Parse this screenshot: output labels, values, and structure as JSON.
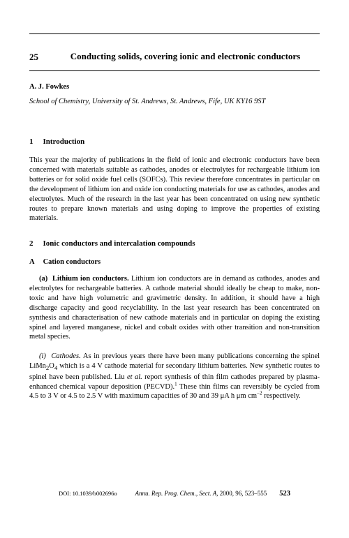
{
  "chapter": {
    "number": "25",
    "title": "Conducting solids, covering ionic and electronic conductors"
  },
  "author": "A. J. Fowkes",
  "affiliation": "School of Chemistry, University of St. Andrews, St. Andrews, Fife, UK KY16 9ST",
  "section1": {
    "num": "1",
    "title": "Introduction",
    "body": "This year the majority of publications in the field of ionic and electronic conductors have been concerned with materials suitable as cathodes, anodes or electrolytes for rechargeable lithium ion batteries or for solid oxide fuel cells (SOFCs). This review therefore concentrates in particular on the development of lithium ion and oxide ion conducting materials for use as cathodes, anodes and electrolytes. Much of the research in the last year has been concentrated on using new synthetic routes to prepare known materials and using doping to improve the properties of existing materials."
  },
  "section2": {
    "num": "2",
    "title": "Ionic conductors and intercalation compounds",
    "subA": {
      "letter": "A",
      "title": "Cation conductors",
      "a": {
        "label": "(a)",
        "title": "Lithium ion conductors.",
        "body": "Lithium ion conductors are in demand as cathodes, anodes and electrolytes for rechargeable batteries. A cathode material should ideally be cheap to make, non-toxic and have high volumetric and gravimetric density. In addition, it should have a high discharge capacity and good recyclability. In the last year research has been concentrated on synthesis and characterisation of new cathode materials and in particular on doping the existing spinel and layered manganese, nickel and cobalt oxides with other transition and non-transition metal species."
      },
      "i": {
        "label": "(i)",
        "title": "Cathodes.",
        "body_pre": "As in previous years there have been many publications concerning the spinel LiMn",
        "body_mid": "O",
        "body_post": " which is a 4 V cathode material for secondary lithium batteries. New synthetic routes to spinel have been published. Liu ",
        "etal": "et al.",
        "body_after_etal": " report synthesis of thin film cathodes prepared by plasma-enhanced chemical vapour deposition (PECVD).",
        "sup1": "1",
        "body_tail1": " These thin films can reversibly be cycled from 4.5 to 3 V or 4.5 to 2.5 V with maximum capacities of 30 and 39 μA h μm cm",
        "sup2": "−2",
        "body_tail2": " respectively."
      }
    }
  },
  "footer": {
    "doi": "DOI: 10.1039/b002696o",
    "journal": "Annu. Rep. Prog. Chem., Sect. A",
    "year_vol_pages": ", 2000, 96, 523–555",
    "pagenum": "523"
  }
}
